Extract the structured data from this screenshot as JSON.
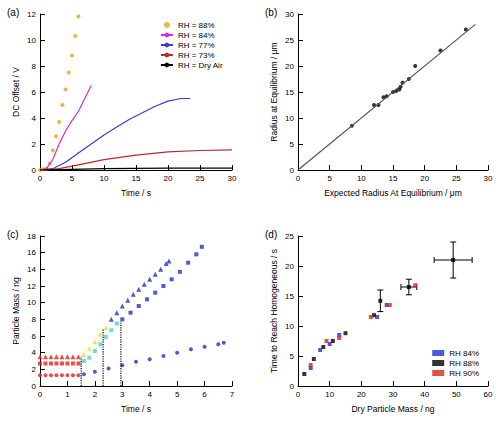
{
  "chart_data": [
    {
      "type": "line",
      "title": "(a)",
      "x_label": "Time / s",
      "y_label": "DC Offset / V",
      "xlim": [
        0,
        30
      ],
      "xticks": [
        0,
        5,
        10,
        15,
        20,
        25,
        30
      ],
      "ylim": [
        0,
        12
      ],
      "yticks": [
        0,
        2,
        4,
        6,
        8,
        10,
        12
      ],
      "grid": false,
      "legend": "upper right",
      "series": [
        {
          "name": "RH = 88%",
          "type": "scatter",
          "marker": "circle",
          "color": "#f39c12",
          "x": [
            0,
            0.5,
            1,
            1.5,
            2,
            2.5,
            3,
            3.5,
            4,
            4.5,
            5,
            5.5,
            6
          ],
          "values": [
            0,
            0.05,
            0.1,
            0.5,
            1.5,
            2.6,
            3.7,
            5.0,
            6.2,
            7.5,
            8.8,
            10.3,
            11.8
          ]
        },
        {
          "name": "RH = 84%",
          "color": "#d62ad6",
          "line_style": "solid",
          "x": [
            0,
            1,
            2,
            3,
            4,
            5,
            6,
            7,
            8
          ],
          "values": [
            0,
            0.1,
            0.8,
            2.0,
            3.0,
            3.8,
            4.5,
            5.5,
            6.5
          ]
        },
        {
          "name": "RH = 77%",
          "color": "#3b3bd6",
          "line_style": "solid",
          "x": [
            0,
            2,
            4,
            6,
            8,
            10,
            12,
            14,
            16,
            18,
            20,
            22,
            23.5
          ],
          "values": [
            0,
            0.1,
            0.6,
            1.3,
            2.0,
            2.7,
            3.3,
            3.9,
            4.4,
            4.9,
            5.3,
            5.5,
            5.5
          ]
        },
        {
          "name": "RH = 73%",
          "color": "#c0282d",
          "line_style": "solid",
          "x": [
            0,
            3,
            6,
            10,
            15,
            20,
            25,
            30
          ],
          "values": [
            0,
            0.1,
            0.4,
            0.8,
            1.15,
            1.4,
            1.5,
            1.55
          ]
        },
        {
          "name": "RH = Dry Air",
          "color": "#000000",
          "line_style": "solid",
          "x": [
            0,
            5,
            10,
            20,
            30
          ],
          "values": [
            0,
            0.05,
            0.1,
            0.15,
            0.15
          ]
        }
      ]
    },
    {
      "type": "scatter",
      "title": "(b)",
      "x_label": "Expected Radius At Equilibrium / μm",
      "y_label": "Radius at Equilibrium / μm",
      "xlim": [
        0,
        30
      ],
      "xticks": [
        0,
        5,
        10,
        15,
        20,
        25,
        30
      ],
      "ylim": [
        0,
        30
      ],
      "yticks": [
        0,
        5,
        10,
        15,
        20,
        25,
        30
      ],
      "grid": false,
      "series": [
        {
          "type": "line",
          "color": "#555555",
          "line_style": "solid",
          "x": [
            0,
            28
          ],
          "values": [
            0,
            28
          ]
        },
        {
          "color": "#000000",
          "marker": "circle",
          "x": [
            8.5,
            12,
            12.7,
            13.5,
            14,
            15,
            15.5,
            16,
            16.2,
            16.5,
            17.5,
            18.5,
            22.5,
            26.5
          ],
          "values": [
            8.5,
            12.5,
            12.5,
            14,
            14.2,
            15,
            15.2,
            15.5,
            16,
            16.8,
            17.5,
            20,
            23,
            27
          ]
        }
      ]
    },
    {
      "type": "scatter",
      "title": "(c)",
      "x_label": "Time / s",
      "y_label": "Particle Mass / ng",
      "xlim": [
        0,
        7
      ],
      "xticks": [
        0,
        1,
        2,
        3,
        4,
        5,
        6,
        7
      ],
      "ylim": [
        0,
        18
      ],
      "yticks": [
        0,
        2,
        4,
        6,
        8,
        10,
        12,
        14,
        16,
        18
      ],
      "grid": false,
      "series": [
        {
          "marker": "triangle",
          "color": "#e0231c",
          "x": [
            0,
            0.2,
            0.4,
            0.6,
            0.8,
            1.0,
            1.2,
            1.4
          ],
          "values": [
            3.5,
            3.5,
            3.5,
            3.5,
            3.5,
            3.5,
            3.5,
            3.5
          ]
        },
        {
          "marker": "triangle",
          "color": "#f2e01c",
          "x": [
            1.6,
            1.8,
            2.0,
            2.2,
            2.4
          ],
          "values": [
            3.8,
            4.5,
            5.3,
            6.2,
            7.0
          ]
        },
        {
          "marker": "triangle",
          "color": "#1f2fd0",
          "x": [
            2.6,
            2.8,
            3.0,
            3.2,
            3.4,
            3.6,
            3.8,
            4.0,
            4.2,
            4.4,
            4.6,
            4.7
          ],
          "values": [
            8,
            8.8,
            9.6,
            10.3,
            11,
            11.6,
            12.2,
            12.8,
            13.4,
            14,
            14.7,
            15
          ]
        },
        {
          "marker": "square",
          "color": "#e0231c",
          "x": [
            0,
            0.2,
            0.4,
            0.6,
            0.8,
            1.0,
            1.2,
            1.4
          ],
          "values": [
            2.7,
            2.7,
            2.7,
            2.7,
            2.7,
            2.7,
            2.7,
            2.7
          ]
        },
        {
          "marker": "square",
          "color": "#3fd6e0",
          "x": [
            1.6,
            1.8,
            2.0,
            2.2,
            2.4,
            2.6,
            2.8
          ],
          "values": [
            3.0,
            3.4,
            4.2,
            5.0,
            5.9,
            6.7,
            7.5
          ]
        },
        {
          "marker": "square",
          "color": "#1f2fd0",
          "x": [
            3.0,
            3.3,
            3.6,
            3.9,
            4.2,
            4.5,
            4.8,
            5.1,
            5.4,
            5.7,
            5.9
          ],
          "values": [
            8,
            8.8,
            9.6,
            10.4,
            11.2,
            12,
            12.8,
            13.7,
            14.8,
            15.8,
            16.7
          ]
        },
        {
          "marker": "circle",
          "color": "#e0231c",
          "x": [
            0,
            0.2,
            0.4,
            0.6,
            0.8,
            1.0,
            1.2,
            1.4
          ],
          "values": [
            1.3,
            1.3,
            1.3,
            1.3,
            1.3,
            1.3,
            1.3,
            1.3
          ]
        },
        {
          "marker": "circle",
          "color": "#1f2fd0",
          "x": [
            1.6,
            2.0,
            2.5,
            3.0,
            3.5,
            4.0,
            4.5,
            5.0,
            5.5,
            6.0,
            6.5,
            6.7
          ],
          "values": [
            1.4,
            1.7,
            2.1,
            2.5,
            2.9,
            3.2,
            3.6,
            4.0,
            4.4,
            4.7,
            5.0,
            5.2
          ]
        },
        {
          "type": "line",
          "color": "#000000",
          "line_style": "dotted",
          "x": [
            1.5,
            1.5
          ],
          "values": [
            0,
            3.5
          ]
        },
        {
          "type": "line",
          "color": "#000000",
          "line_style": "dotted",
          "x": [
            2.3,
            2.3
          ],
          "values": [
            0,
            6.8
          ]
        },
        {
          "type": "line",
          "color": "#000000",
          "line_style": "dotted",
          "x": [
            2.95,
            2.95
          ],
          "values": [
            0,
            7.8
          ]
        }
      ]
    },
    {
      "type": "scatter",
      "title": "(d)",
      "x_label": "Dry Particle Mass / ng",
      "y_label": "Time to Reach Homogeneous / s",
      "xlim": [
        0,
        60
      ],
      "xticks": [
        0,
        10,
        20,
        30,
        40,
        50,
        60
      ],
      "ylim": [
        0,
        25
      ],
      "yticks": [
        0,
        5,
        10,
        15,
        20,
        25
      ],
      "grid": false,
      "legend": "lower right",
      "series": [
        {
          "name": "RH 84%",
          "marker": "square",
          "color": "#1f2fd0",
          "x": [
            4,
            7,
            10,
            13,
            25,
            28
          ],
          "values": [
            3,
            6,
            7,
            8.5,
            11.5,
            13.5
          ]
        },
        {
          "name": "RH 88%",
          "marker": "square",
          "color": "#000000",
          "x": [
            2,
            5,
            8,
            11,
            15,
            24,
            26,
            35,
            49
          ],
          "values": [
            2,
            4.5,
            6.5,
            7.5,
            8.8,
            11.8,
            14.2,
            16.5,
            21
          ],
          "x_errors": [
            null,
            null,
            null,
            null,
            null,
            null,
            null,
            2.5,
            6
          ],
          "y_errors": [
            null,
            null,
            null,
            null,
            null,
            null,
            1.8,
            1.3,
            3
          ]
        },
        {
          "name": "RH 90%",
          "marker": "square",
          "color": "#e0231c",
          "x": [
            4,
            9,
            13,
            23,
            29,
            37
          ],
          "values": [
            3.5,
            7.5,
            8,
            11.5,
            13.5,
            16.8
          ]
        }
      ]
    }
  ]
}
